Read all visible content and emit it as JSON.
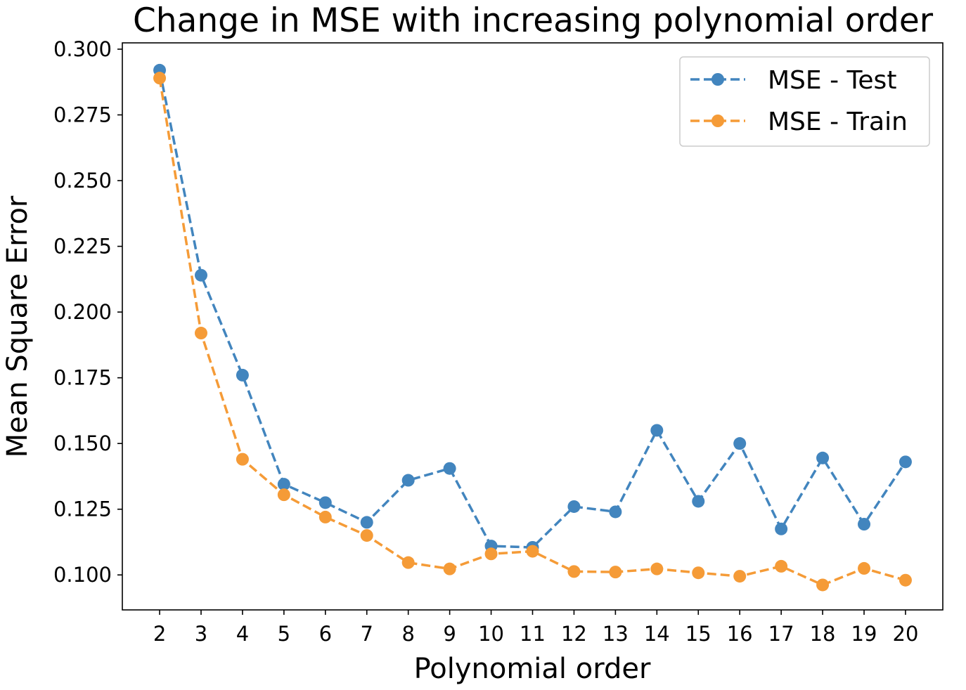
{
  "chart_data": {
    "type": "line",
    "title": "Change in MSE with increasing polynomial order",
    "xlabel": "Polynomial order",
    "ylabel": "Mean Square Error",
    "x": [
      2,
      3,
      4,
      5,
      6,
      7,
      8,
      9,
      10,
      11,
      12,
      13,
      14,
      15,
      16,
      17,
      18,
      19,
      20
    ],
    "xlim": [
      1.1,
      20.9
    ],
    "ylim": [
      0.0867,
      0.3024
    ],
    "yticks": [
      0.1,
      0.125,
      0.15,
      0.175,
      0.2,
      0.225,
      0.25,
      0.275,
      0.3
    ],
    "ytick_labels": [
      "0.100",
      "0.125",
      "0.150",
      "0.175",
      "0.200",
      "0.225",
      "0.250",
      "0.275",
      "0.300"
    ],
    "xtick_labels": [
      "2",
      "3",
      "4",
      "5",
      "6",
      "7",
      "8",
      "9",
      "10",
      "11",
      "12",
      "13",
      "14",
      "15",
      "16",
      "17",
      "18",
      "19",
      "20"
    ],
    "grid": false,
    "legend_position": "top-right",
    "line_style": "dashed",
    "marker": "circle",
    "series": [
      {
        "name": "MSE - Test",
        "color": "#4285be",
        "values": [
          0.292,
          0.214,
          0.176,
          0.1345,
          0.1275,
          0.12,
          0.136,
          0.1405,
          0.111,
          0.1105,
          0.126,
          0.124,
          0.155,
          0.128,
          0.15,
          0.1175,
          0.1445,
          0.1193,
          0.143
        ]
      },
      {
        "name": "MSE - Train",
        "color": "#f59b37",
        "values": [
          0.289,
          0.192,
          0.144,
          0.1305,
          0.122,
          0.115,
          0.1047,
          0.1023,
          0.108,
          0.109,
          0.1013,
          0.1011,
          0.1023,
          0.1008,
          0.0995,
          0.1033,
          0.0962,
          0.1025,
          0.098
        ]
      }
    ]
  }
}
